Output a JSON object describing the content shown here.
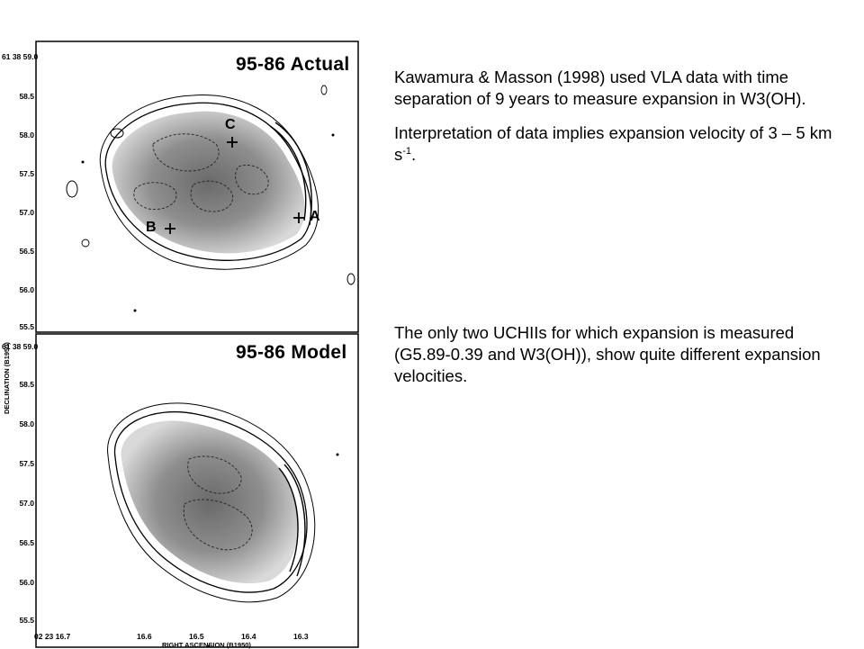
{
  "figure": {
    "top_panel": {
      "title": "95-86 Actual",
      "markers": [
        {
          "label": "C"
        },
        {
          "label": "B"
        },
        {
          "label": "A"
        }
      ]
    },
    "bottom_panel": {
      "title": "95-86 Model"
    },
    "dec_prefix": "61 38 59.0",
    "y_ticks": [
      "58.5",
      "58.0",
      "57.5",
      "57.0",
      "56.5",
      "56.0",
      "55.5"
    ],
    "x_ticks": [
      "02 23 16.7",
      "16.6",
      "16.5",
      "16.4",
      "16.3"
    ],
    "ylabel": "DECLINATION (B1950)",
    "xlabel": "RIGHT ASCENSION (B1950)"
  },
  "text": {
    "para1": "Kawamura & Masson (1998) used VLA data with time separation of 9 years to measure expansion in W3(OH).",
    "para2_main": "Interpretation of data implies expansion velocity of 3 – 5 km s",
    "para2_sup": "-1",
    "para2_end": ".",
    "para3": "The only two UCHIIs for which expansion is measured (G5.89-0.39 and W3(OH)), show quite different expansion velocities."
  }
}
